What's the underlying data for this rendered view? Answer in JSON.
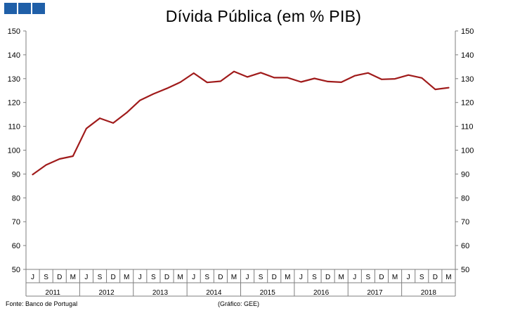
{
  "header": {
    "logo_colors": [
      "#1f5fa8",
      "#1f5fa8",
      "#1f5fa8"
    ]
  },
  "chart_data": {
    "type": "line",
    "title": "Dívida Pública (em % PIB)",
    "ylim": [
      50,
      150
    ],
    "y_ticks": [
      50,
      60,
      70,
      80,
      90,
      100,
      110,
      120,
      130,
      140,
      150
    ],
    "secondary_y_axis": true,
    "grid": false,
    "line_color": "#a01b1b",
    "month_labels": [
      "J",
      "S",
      "D",
      "M",
      "J",
      "S",
      "D",
      "M",
      "J",
      "S",
      "D",
      "M",
      "J",
      "S",
      "D",
      "M",
      "J",
      "S",
      "D",
      "M",
      "J",
      "S",
      "D",
      "M",
      "J",
      "S",
      "D",
      "M",
      "J",
      "S",
      "D",
      "M"
    ],
    "year_labels": [
      {
        "label": "2011",
        "span": [
          0,
          4
        ]
      },
      {
        "label": "2012",
        "span": [
          4,
          8
        ]
      },
      {
        "label": "2013",
        "span": [
          8,
          12
        ]
      },
      {
        "label": "2014",
        "span": [
          12,
          16
        ]
      },
      {
        "label": "2015",
        "span": [
          16,
          20
        ]
      },
      {
        "label": "2016",
        "span": [
          20,
          24
        ]
      },
      {
        "label": "2017",
        "span": [
          24,
          28
        ]
      },
      {
        "label": "2018",
        "span": [
          28,
          32
        ]
      }
    ],
    "series": [
      {
        "values": [
          89.8,
          93.8,
          96.3,
          97.5,
          109.1,
          113.4,
          111.4,
          115.7,
          120.9,
          123.6,
          125.9,
          128.5,
          132.3,
          128.4,
          128.9,
          133.0,
          130.7,
          132.5,
          130.4,
          130.4,
          128.6,
          130.1,
          128.8,
          128.5,
          131.2,
          132.4,
          129.7,
          129.9,
          131.5,
          130.3,
          125.5,
          126.2
        ]
      }
    ]
  },
  "footer": {
    "source": "Fonte: Banco de Portugal",
    "credit": "(Gráfico: GEE)"
  }
}
